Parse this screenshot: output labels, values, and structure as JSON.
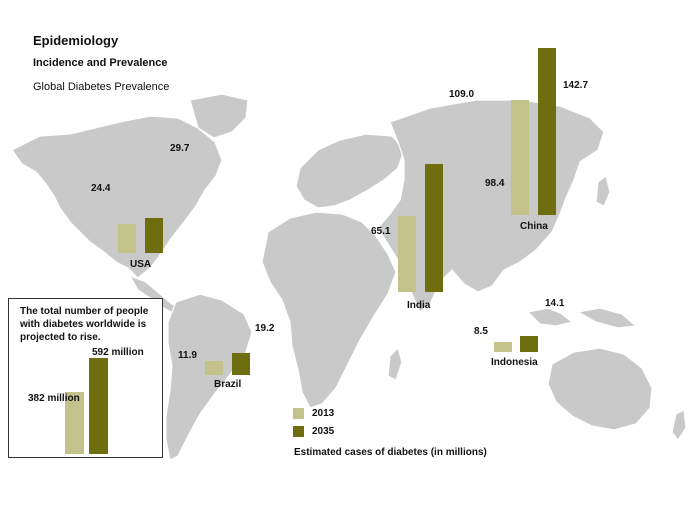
{
  "header": {
    "title": "Epidemiology",
    "subtitle": "Incidence and Prevalence",
    "chart_title": "Global Diabetes Prevalence"
  },
  "colors": {
    "c2013": "#c2c28a",
    "c2035": "#6e6e0f",
    "land": "#c9c9c9"
  },
  "legend": {
    "items": [
      "2013",
      "2035"
    ]
  },
  "caption": "Estimated cases of diabetes (in millions)",
  "inset": {
    "text": "The total number of people with diabetes worldwide is projected to rise.",
    "label_2013": "382 million",
    "label_2035": "592 million"
  },
  "chart_data": {
    "type": "bar",
    "title": "Global Diabetes Prevalence",
    "ylabel": "Estimated cases of diabetes (in millions)",
    "categories": [
      "USA",
      "Brazil",
      "India",
      "China",
      "Indonesia"
    ],
    "series": [
      {
        "name": "2013",
        "values": [
          24.4,
          11.9,
          65.1,
          98.4,
          8.5
        ]
      },
      {
        "name": "2035",
        "values": [
          29.7,
          19.2,
          109.0,
          142.7,
          14.1
        ]
      }
    ],
    "value_labels": {
      "2013": [
        "24.4",
        "11.9",
        "65.1",
        "98.4",
        "8.5"
      ],
      "2035": [
        "29.7",
        "19.2",
        "109.0",
        "142.7",
        "14.1"
      ]
    },
    "worldwide": {
      "categories": [
        "2013",
        "2035"
      ],
      "values": [
        382,
        592
      ],
      "unit": "million"
    }
  }
}
